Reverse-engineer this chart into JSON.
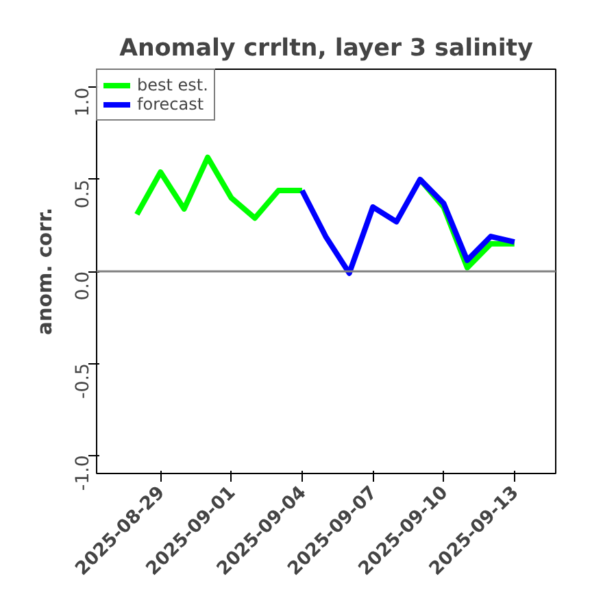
{
  "chart_data": {
    "type": "line",
    "title": "Anomaly crrltn, layer 3 salinity",
    "ylabel": "anom. corr.",
    "series": [
      {
        "name": "best est.",
        "color": "#00ff00",
        "x": [
          "2025-08-28",
          "2025-08-29",
          "2025-08-30",
          "2025-08-31",
          "2025-09-01",
          "2025-09-02",
          "2025-09-03",
          "2025-09-04",
          "2025-09-05",
          "2025-09-06",
          "2025-09-07",
          "2025-09-08",
          "2025-09-09",
          "2025-09-10",
          "2025-09-11",
          "2025-09-12",
          "2025-09-13"
        ],
        "values": [
          0.31,
          0.54,
          0.34,
          0.62,
          0.4,
          0.29,
          0.44,
          0.44,
          null,
          null,
          null,
          null,
          0.5,
          0.35,
          0.02,
          0.15,
          0.15
        ]
      },
      {
        "name": "forecast",
        "color": "#0000ff",
        "x": [
          "2025-09-04",
          "2025-09-05",
          "2025-09-06",
          "2025-09-07",
          "2025-09-08",
          "2025-09-09",
          "2025-09-10",
          "2025-09-11",
          "2025-09-12",
          "2025-09-13"
        ],
        "values": [
          0.44,
          0.19,
          -0.01,
          0.35,
          0.27,
          0.5,
          0.37,
          0.06,
          0.19,
          0.16
        ]
      }
    ],
    "xlim": [
      "2025-08-26T07:00",
      "2025-09-14T18:00"
    ],
    "xticks": [
      "2025-08-29",
      "2025-09-01",
      "2025-09-04",
      "2025-09-07",
      "2025-09-10",
      "2025-09-13"
    ],
    "ylim": [
      -1.1,
      1.1
    ],
    "yticks": [
      {
        "value": -1.0,
        "label": "-1.0"
      },
      {
        "value": -0.5,
        "label": "-0.5"
      },
      {
        "value": 0.0,
        "label": "0.0"
      },
      {
        "value": 0.5,
        "label": "0.5"
      },
      {
        "value": 1.0,
        "label": "1.0"
      }
    ],
    "ref_lines": [
      {
        "axis": "y",
        "value": 0,
        "color": "#808080"
      }
    ],
    "grid": false,
    "legend": "top left",
    "marker": "none",
    "line_style": "solid"
  }
}
